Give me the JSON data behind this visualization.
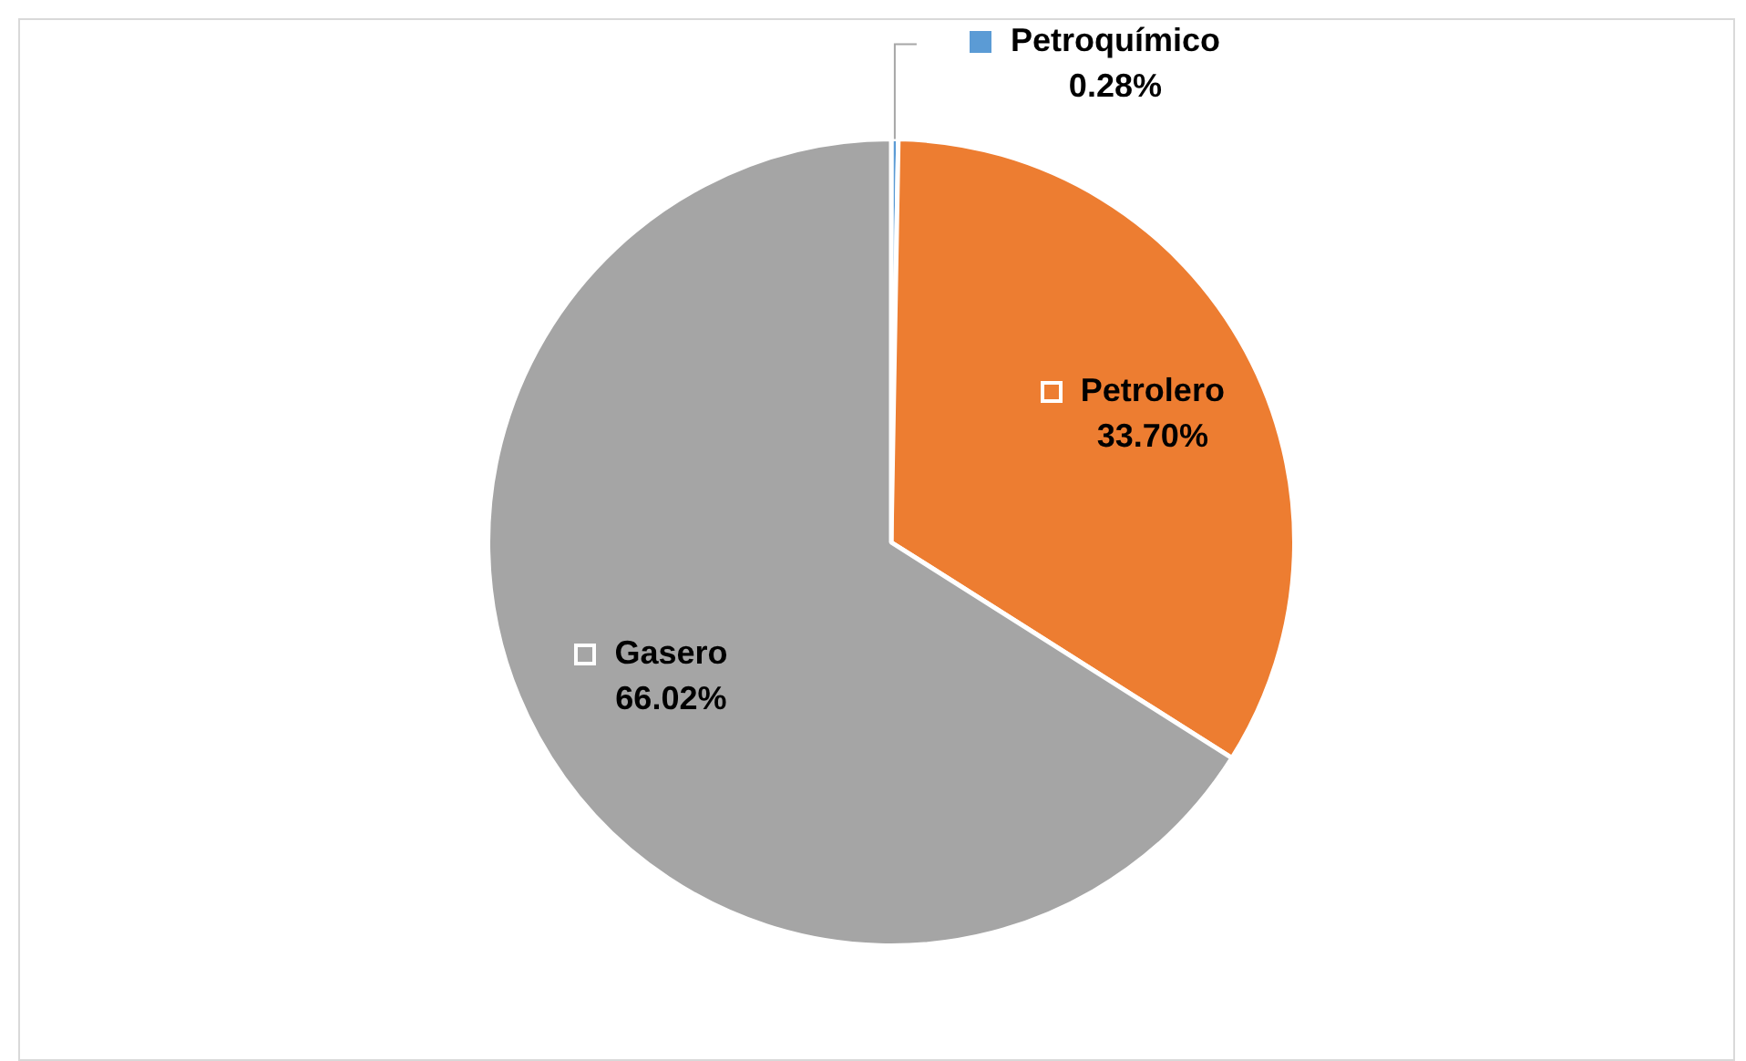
{
  "chart_data": {
    "type": "pie",
    "categories": [
      "Petroquímico",
      "Petrolero",
      "Gasero"
    ],
    "values": [
      0.28,
      33.7,
      66.02
    ],
    "colors": [
      "#5b9bd5",
      "#ed7d31",
      "#a5a5a5"
    ],
    "value_labels": [
      "0.28%",
      "33.70%",
      "66.02%"
    ],
    "legend": "top"
  }
}
